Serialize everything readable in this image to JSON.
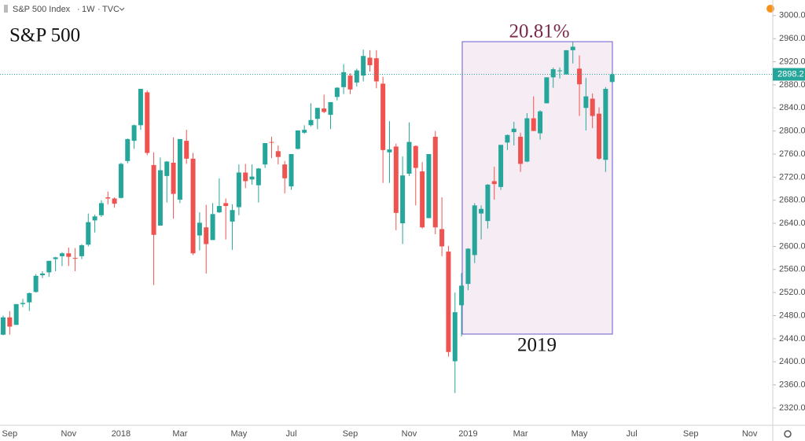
{
  "chart_data": {
    "type": "candlestick",
    "title": "S&P 500 Index",
    "interval": "1W",
    "source": "TVC",
    "annotations": {
      "label": "S&P 500",
      "change": "20.81%",
      "period": "2019"
    },
    "categories": [
      null,
      "Sep",
      null,
      null,
      null,
      null,
      null,
      null,
      null,
      null,
      "Nov",
      null,
      null,
      null,
      null,
      null,
      null,
      null,
      "2018",
      null,
      null,
      null,
      null,
      null,
      null,
      null,
      null,
      "Mar",
      null,
      null,
      null,
      null,
      null,
      null,
      null,
      null,
      "May",
      null,
      null,
      null,
      null,
      null,
      null,
      null,
      "Jul",
      null,
      null,
      null,
      null,
      null,
      null,
      null,
      null,
      "Sep",
      null,
      null,
      null,
      null,
      null,
      null,
      null,
      null,
      "Nov",
      null,
      null,
      null,
      null,
      null,
      null,
      null,
      null,
      "2019",
      null,
      null,
      null,
      null,
      null,
      null,
      null,
      "Mar",
      null,
      null,
      null,
      null,
      null,
      null,
      null,
      null,
      "May",
      null,
      null,
      null,
      null,
      null,
      null,
      null,
      "Jul",
      null,
      null,
      null,
      null,
      null,
      null,
      null,
      null,
      "Sep",
      null,
      null,
      null,
      null,
      null,
      null,
      null,
      null,
      "Nov",
      null,
      null,
      null
    ],
    "open": [
      2447,
      2477,
      2464,
      2500,
      2503,
      2521,
      2550,
      2555,
      2578,
      2583,
      2588,
      2580,
      2583,
      2603,
      2645,
      2654,
      2685,
      2683,
      2684,
      2748,
      2783,
      2810,
      2867,
      2741,
      2636,
      2722,
      2745,
      2681,
      2783,
      2752,
      2619,
      2633,
      2611,
      2659,
      2675,
      2643,
      2668,
      2728,
      2716,
      2706,
      2742,
      2781,
      2765,
      2742,
      2704,
      2769,
      2797,
      2810,
      2821,
      2839,
      2828,
      2859,
      2876,
      2896,
      2884,
      2896,
      2927,
      2926,
      2882,
      2763,
      2773,
      2640,
      2726,
      2774,
      2730,
      2649,
      2790,
      2630,
      2591,
      2401,
      2498,
      2535,
      2585,
      2657,
      2644,
      2713,
      2703,
      2780,
      2798,
      2790,
      2747,
      2822,
      2796,
      2848,
      2893,
      2905,
      2898,
      2940,
      2908,
      2840,
      2856,
      2830,
      2750,
      2885,
      null,
      null,
      null,
      null,
      null,
      null,
      null,
      null,
      null,
      null,
      null,
      null,
      null,
      null,
      null,
      null,
      null,
      null,
      null,
      null,
      null,
      null,
      null,
      null
    ],
    "high": [
      2480,
      2488,
      2500,
      2509,
      2520,
      2552,
      2557,
      2575,
      2582,
      2590,
      2598,
      2597,
      2604,
      2657,
      2655,
      2680,
      2695,
      2685,
      2745,
      2787,
      2811,
      2873,
      2870,
      2763,
      2754,
      2748,
      2789,
      2786,
      2802,
      2762,
      2659,
      2672,
      2675,
      2718,
      2683,
      2673,
      2742,
      2743,
      2742,
      2736,
      2779,
      2790,
      2775,
      2748,
      2760,
      2801,
      2810,
      2848,
      2840,
      2863,
      2850,
      2876,
      2916,
      2900,
      2908,
      2941,
      2940,
      2940,
      2894,
      2817,
      2778,
      2756,
      2815,
      2775,
      2746,
      2760,
      2800,
      2685,
      2601,
      2520,
      2554,
      2597,
      2675,
      2671,
      2708,
      2738,
      2775,
      2794,
      2816,
      2797,
      2831,
      2860,
      2836,
      2893,
      2910,
      2910,
      2940,
      2954,
      2931,
      2892,
      2865,
      2841,
      2876,
      2901,
      null,
      null,
      null,
      null,
      null,
      null,
      null,
      null,
      null,
      null,
      null,
      null,
      null,
      null,
      null,
      null,
      null,
      null,
      null,
      null,
      null,
      null,
      null,
      null
    ],
    "low": [
      2446,
      2447,
      2464,
      2495,
      2488,
      2520,
      2545,
      2547,
      2557,
      2566,
      2566,
      2557,
      2578,
      2600,
      2624,
      2651,
      2673,
      2667,
      2683,
      2744,
      2769,
      2802,
      2758,
      2533,
      2636,
      2676,
      2648,
      2675,
      2743,
      2585,
      2593,
      2553,
      2611,
      2658,
      2612,
      2594,
      2654,
      2701,
      2707,
      2676,
      2736,
      2753,
      2742,
      2692,
      2698,
      2768,
      2795,
      2808,
      2803,
      2831,
      2803,
      2853,
      2864,
      2864,
      2877,
      2886,
      2903,
      2874,
      2710,
      2710,
      2628,
      2604,
      2722,
      2671,
      2631,
      2649,
      2621,
      2583,
      2409,
      2346,
      2444,
      2524,
      2571,
      2612,
      2631,
      2681,
      2698,
      2767,
      2775,
      2729,
      2746,
      2800,
      2785,
      2848,
      2875,
      2891,
      2898,
      2917,
      2826,
      2801,
      2805,
      2750,
      2729,
      2883,
      null,
      null,
      null,
      null,
      null,
      null,
      null,
      null,
      null,
      null,
      null,
      null,
      null,
      null,
      null,
      null,
      null,
      null,
      null,
      null,
      null,
      null,
      null,
      null
    ],
    "close": [
      2477,
      2461,
      2500,
      2502,
      2519,
      2549,
      2553,
      2575,
      2581,
      2588,
      2582,
      2579,
      2602,
      2642,
      2652,
      2675,
      2683,
      2674,
      2743,
      2786,
      2810,
      2873,
      2762,
      2620,
      2732,
      2747,
      2691,
      2786,
      2752,
      2588,
      2641,
      2604,
      2656,
      2670,
      2670,
      2663,
      2728,
      2713,
      2721,
      2735,
      2779,
      2780,
      2755,
      2718,
      2760,
      2801,
      2802,
      2819,
      2840,
      2833,
      2850,
      2875,
      2902,
      2872,
      2905,
      2930,
      2914,
      2886,
      2767,
      2768,
      2658,
      2723,
      2781,
      2736,
      2633,
      2760,
      2633,
      2600,
      2417,
      2486,
      2532,
      2596,
      2671,
      2665,
      2707,
      2708,
      2776,
      2793,
      2804,
      2743,
      2822,
      2800,
      2834,
      2893,
      2907,
      2905,
      2940,
      2946,
      2881,
      2860,
      2826,
      2752,
      2873,
      2898.2,
      null,
      null,
      null,
      null,
      null,
      null,
      null,
      null,
      null,
      null,
      null,
      null,
      null,
      null,
      null,
      null,
      null,
      null,
      null,
      null,
      null,
      null,
      null,
      null
    ],
    "up_color": "#26a69a",
    "down_color": "#ef5350",
    "ylim": [
      2290,
      3027
    ],
    "yticks": [
      {
        "value": 3000,
        "label": "3000.0"
      },
      {
        "value": 2960,
        "label": "2960.0"
      },
      {
        "value": 2920,
        "label": "2920.0"
      },
      {
        "value": 2880,
        "label": "2880.0"
      },
      {
        "value": 2840,
        "label": "2840.0"
      },
      {
        "value": 2800,
        "label": "2800.0"
      },
      {
        "value": 2760,
        "label": "2760.0"
      },
      {
        "value": 2720,
        "label": "2720.0"
      },
      {
        "value": 2680,
        "label": "2680.0"
      },
      {
        "value": 2640,
        "label": "2640.0"
      },
      {
        "value": 2600,
        "label": "2600.0"
      },
      {
        "value": 2560,
        "label": "2560.0"
      },
      {
        "value": 2520,
        "label": "2520.0"
      },
      {
        "value": 2480,
        "label": "2480.0"
      },
      {
        "value": 2440,
        "label": "2440.0"
      },
      {
        "value": 2400,
        "label": "2400.0"
      },
      {
        "value": 2360,
        "label": "2360.0"
      },
      {
        "value": 2320,
        "label": "2320.0"
      }
    ],
    "grid": false
  }
}
